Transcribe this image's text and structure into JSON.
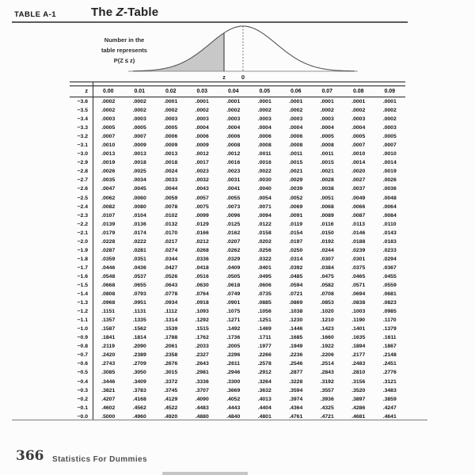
{
  "page": {
    "table_label": "TABLE A-1",
    "title_pre": "The ",
    "title_z": "Z",
    "title_post": "-Table"
  },
  "diagram": {
    "caption_line1": "Number in the",
    "caption_line2": "table represents",
    "caption_line3": "P(Z ≤ z)",
    "x_label_z": "z",
    "x_label_zero": "0",
    "shade_color": "#c8c8c8",
    "curve_color": "#555555"
  },
  "ztable": {
    "columns": [
      "z",
      "0.00",
      "0.01",
      "0.02",
      "0.03",
      "0.04",
      "0.05",
      "0.06",
      "0.07",
      "0.08",
      "0.09"
    ],
    "rows": [
      {
        "z": "−3.6",
        "values": [
          ".0002",
          ".0002",
          ".0001",
          ".0001",
          ".0001",
          ".0001",
          ".0001",
          ".0001",
          ".0001",
          ".0001"
        ]
      },
      {
        "z": "−3.5",
        "values": [
          ".0002",
          ".0002",
          ".0002",
          ".0002",
          ".0002",
          ".0002",
          ".0002",
          ".0002",
          ".0002",
          ".0002"
        ]
      },
      {
        "z": "−3.4",
        "values": [
          ".0003",
          ".0003",
          ".0003",
          ".0003",
          ".0003",
          ".0003",
          ".0003",
          ".0003",
          ".0003",
          ".0002"
        ]
      },
      {
        "z": "−3.3",
        "values": [
          ".0005",
          ".0005",
          ".0005",
          ".0004",
          ".0004",
          ".0004",
          ".0004",
          ".0004",
          ".0004",
          ".0003"
        ]
      },
      {
        "z": "−3.2",
        "values": [
          ".0007",
          ".0007",
          ".0006",
          ".0006",
          ".0006",
          ".0006",
          ".0006",
          ".0005",
          ".0005",
          ".0005"
        ]
      },
      {
        "z": "−3.1",
        "values": [
          ".0010",
          ".0009",
          ".0009",
          ".0009",
          ".0008",
          ".0008",
          ".0008",
          ".0008",
          ".0007",
          ".0007"
        ]
      },
      {
        "z": "−3.0",
        "values": [
          ".0013",
          ".0013",
          ".0013",
          ".0012",
          ".0012",
          ".0011",
          ".0011",
          ".0011",
          ".0010",
          ".0010"
        ]
      },
      {
        "z": "−2.9",
        "values": [
          ".0019",
          ".0018",
          ".0018",
          ".0017",
          ".0016",
          ".0016",
          ".0015",
          ".0015",
          ".0014",
          ".0014"
        ]
      },
      {
        "z": "−2.8",
        "values": [
          ".0026",
          ".0025",
          ".0024",
          ".0023",
          ".0023",
          ".0022",
          ".0021",
          ".0021",
          ".0020",
          ".0019"
        ]
      },
      {
        "z": "−2.7",
        "values": [
          ".0035",
          ".0034",
          ".0033",
          ".0032",
          ".0031",
          ".0030",
          ".0029",
          ".0028",
          ".0027",
          ".0026"
        ]
      },
      {
        "z": "−2.6",
        "values": [
          ".0047",
          ".0045",
          ".0044",
          ".0043",
          ".0041",
          ".0040",
          ".0039",
          ".0038",
          ".0037",
          ".0036"
        ]
      },
      {
        "z": "−2.5",
        "values": [
          ".0062",
          ".0060",
          ".0059",
          ".0057",
          ".0055",
          ".0054",
          ".0052",
          ".0051",
          ".0049",
          ".0048"
        ]
      },
      {
        "z": "−2.4",
        "values": [
          ".0082",
          ".0080",
          ".0078",
          ".0075",
          ".0073",
          ".0071",
          ".0069",
          ".0068",
          ".0066",
          ".0064"
        ]
      },
      {
        "z": "−2.3",
        "values": [
          ".0107",
          ".0104",
          ".0102",
          ".0099",
          ".0096",
          ".0094",
          ".0091",
          ".0089",
          ".0087",
          ".0084"
        ]
      },
      {
        "z": "−2.2",
        "values": [
          ".0139",
          ".0136",
          ".0132",
          ".0129",
          ".0125",
          ".0122",
          ".0119",
          ".0116",
          ".0113",
          ".0110"
        ]
      },
      {
        "z": "−2.1",
        "values": [
          ".0179",
          ".0174",
          ".0170",
          ".0166",
          ".0162",
          ".0158",
          ".0154",
          ".0150",
          ".0146",
          ".0143"
        ]
      },
      {
        "z": "−2.0",
        "values": [
          ".0228",
          ".0222",
          ".0217",
          ".0212",
          ".0207",
          ".0202",
          ".0197",
          ".0192",
          ".0188",
          ".0183"
        ]
      },
      {
        "z": "−1.9",
        "values": [
          ".0287",
          ".0281",
          ".0274",
          ".0268",
          ".0262",
          ".0256",
          ".0250",
          ".0244",
          ".0239",
          ".0233"
        ]
      },
      {
        "z": "−1.8",
        "values": [
          ".0359",
          ".0351",
          ".0344",
          ".0336",
          ".0329",
          ".0322",
          ".0314",
          ".0307",
          ".0301",
          ".0294"
        ]
      },
      {
        "z": "−1.7",
        "values": [
          ".0446",
          ".0436",
          ".0427",
          ".0418",
          ".0409",
          ".0401",
          ".0392",
          ".0384",
          ".0375",
          ".0367"
        ]
      },
      {
        "z": "−1.6",
        "values": [
          ".0548",
          ".0537",
          ".0526",
          ".0516",
          ".0505",
          ".0495",
          ".0485",
          ".0475",
          ".0465",
          ".0455"
        ]
      },
      {
        "z": "−1.5",
        "values": [
          ".0668",
          ".0655",
          ".0643",
          ".0630",
          ".0618",
          ".0606",
          ".0594",
          ".0582",
          ".0571",
          ".0559"
        ]
      },
      {
        "z": "−1.4",
        "values": [
          ".0808",
          ".0793",
          ".0778",
          ".0764",
          ".0749",
          ".0735",
          ".0721",
          ".0708",
          ".0694",
          ".0681"
        ]
      },
      {
        "z": "−1.3",
        "values": [
          ".0968",
          ".0951",
          ".0934",
          ".0918",
          ".0901",
          ".0885",
          ".0869",
          ".0853",
          ".0838",
          ".0823"
        ]
      },
      {
        "z": "−1.2",
        "values": [
          ".1151",
          ".1131",
          ".1112",
          ".1093",
          ".1075",
          ".1056",
          ".1038",
          ".1020",
          ".1003",
          ".0985"
        ]
      },
      {
        "z": "−1.1",
        "values": [
          ".1357",
          ".1335",
          ".1314",
          ".1292",
          ".1271",
          ".1251",
          ".1230",
          ".1210",
          ".1190",
          ".1170"
        ]
      },
      {
        "z": "−1.0",
        "values": [
          ".1587",
          ".1562",
          ".1539",
          ".1515",
          ".1492",
          ".1469",
          ".1446",
          ".1423",
          ".1401",
          ".1379"
        ]
      },
      {
        "z": "−0.9",
        "values": [
          ".1841",
          ".1814",
          ".1788",
          ".1762",
          ".1736",
          ".1711",
          ".1685",
          ".1660",
          ".1635",
          ".1611"
        ]
      },
      {
        "z": "−0.8",
        "values": [
          ".2119",
          ".2090",
          ".2061",
          ".2033",
          ".2005",
          ".1977",
          ".1949",
          ".1922",
          ".1894",
          ".1867"
        ]
      },
      {
        "z": "−0.7",
        "values": [
          ".2420",
          ".2389",
          ".2358",
          ".2327",
          ".2296",
          ".2266",
          ".2236",
          ".2206",
          ".2177",
          ".2148"
        ]
      },
      {
        "z": "−0.6",
        "values": [
          ".2743",
          ".2709",
          ".2676",
          ".2643",
          ".2611",
          ".2578",
          ".2546",
          ".2514",
          ".2483",
          ".2451"
        ]
      },
      {
        "z": "−0.5",
        "values": [
          ".3085",
          ".3050",
          ".3015",
          ".2981",
          ".2946",
          ".2912",
          ".2877",
          ".2843",
          ".2810",
          ".2776"
        ]
      },
      {
        "z": "−0.4",
        "values": [
          ".3446",
          ".3409",
          ".3372",
          ".3336",
          ".3300",
          ".3264",
          ".3228",
          ".3192",
          ".3156",
          ".3121"
        ]
      },
      {
        "z": "−0.3",
        "values": [
          ".3821",
          ".3783",
          ".3745",
          ".3707",
          ".3669",
          ".3632",
          ".3594",
          ".3557",
          ".3520",
          ".3483"
        ]
      },
      {
        "z": "−0.2",
        "values": [
          ".4207",
          ".4168",
          ".4129",
          ".4090",
          ".4052",
          ".4013",
          ".3974",
          ".3936",
          ".3897",
          ".3859"
        ]
      },
      {
        "z": "−0.1",
        "values": [
          ".4602",
          ".4562",
          ".4522",
          ".4483",
          ".4443",
          ".4404",
          ".4364",
          ".4325",
          ".4286",
          ".4247"
        ]
      },
      {
        "z": "−0.0",
        "values": [
          ".5000",
          ".4960",
          ".4920",
          ".4880",
          ".4840",
          ".4801",
          ".4761",
          ".4721",
          ".4681",
          ".4641"
        ]
      }
    ]
  },
  "footer": {
    "page_number": "366",
    "book_title": "Statistics For Dummies"
  }
}
